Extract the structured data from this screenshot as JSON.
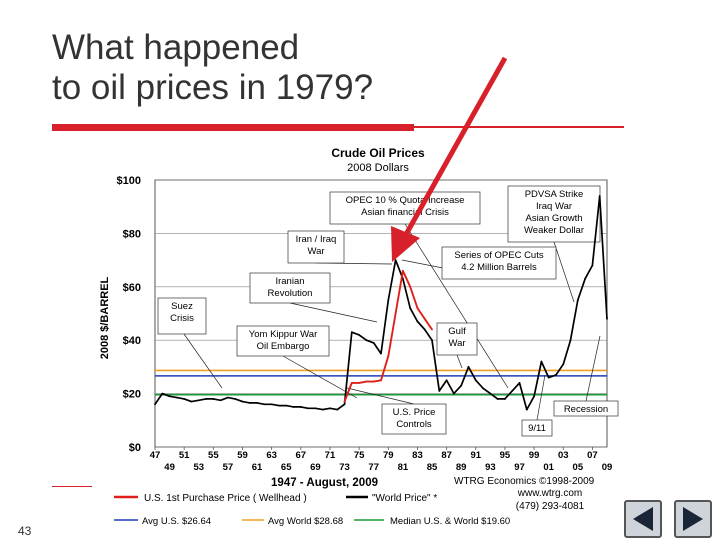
{
  "slide": {
    "title": "What happened\nto oil prices in 1979?",
    "page_number": "43"
  },
  "navigation": {
    "prev_icon": "triangle-left-icon",
    "next_icon": "triangle-right-icon"
  },
  "colors": {
    "accent_red": "#d8202a",
    "world_price": "#000000",
    "us_price": "#e0201b",
    "avg_us": "#1f3fb5",
    "avg_world": "#f0a020",
    "median": "#1a9a3a"
  },
  "chart_data": {
    "type": "line",
    "title": "Crude Oil Prices",
    "subtitle": "2008 Dollars",
    "ylabel": "2008 $/BARREL",
    "xlabel": "1947 - August, 2009",
    "ylim": [
      0,
      100
    ],
    "xlim": [
      1947,
      2009
    ],
    "yticks": [
      {
        "value": 0,
        "label": "$0"
      },
      {
        "value": 20,
        "label": "$20"
      },
      {
        "value": 40,
        "label": "$40"
      },
      {
        "value": 60,
        "label": "$60"
      },
      {
        "value": 80,
        "label": "$80"
      },
      {
        "value": 100,
        "label": "$100"
      }
    ],
    "xticks_top": [
      "47",
      "51",
      "55",
      "59",
      "63",
      "67",
      "71",
      "75",
      "79",
      "83",
      "87",
      "91",
      "95",
      "99",
      "03",
      "07"
    ],
    "xticks_bottom": [
      "49",
      "53",
      "57",
      "61",
      "65",
      "69",
      "73",
      "77",
      "81",
      "85",
      "89",
      "93",
      "97",
      "01",
      "05",
      "09"
    ],
    "series": [
      {
        "name": "\"World Price\" *",
        "color": "#000000",
        "points": [
          [
            1947,
            16
          ],
          [
            1948,
            20
          ],
          [
            1949,
            19
          ],
          [
            1950,
            18.5
          ],
          [
            1951,
            18
          ],
          [
            1952,
            17
          ],
          [
            1953,
            17.5
          ],
          [
            1954,
            18
          ],
          [
            1955,
            18
          ],
          [
            1956,
            17.5
          ],
          [
            1957,
            18.5
          ],
          [
            1958,
            18
          ],
          [
            1959,
            17
          ],
          [
            1960,
            16.5
          ],
          [
            1961,
            16.5
          ],
          [
            1962,
            16
          ],
          [
            1963,
            16
          ],
          [
            1964,
            15.5
          ],
          [
            1965,
            15.5
          ],
          [
            1966,
            15
          ],
          [
            1967,
            15
          ],
          [
            1968,
            14.5
          ],
          [
            1969,
            14.5
          ],
          [
            1970,
            14
          ],
          [
            1971,
            14.5
          ],
          [
            1972,
            14
          ],
          [
            1973,
            16
          ],
          [
            1974,
            43
          ],
          [
            1975,
            42
          ],
          [
            1976,
            40
          ],
          [
            1977,
            39
          ],
          [
            1978,
            35
          ],
          [
            1979,
            55
          ],
          [
            1980,
            70
          ],
          [
            1981,
            63
          ],
          [
            1982,
            52
          ],
          [
            1983,
            47
          ],
          [
            1984,
            44
          ],
          [
            1985,
            40
          ],
          [
            1986,
            21
          ],
          [
            1987,
            25
          ],
          [
            1988,
            20
          ],
          [
            1989,
            23
          ],
          [
            1990,
            30
          ],
          [
            1991,
            25
          ],
          [
            1992,
            22
          ],
          [
            1993,
            20
          ],
          [
            1994,
            18
          ],
          [
            1995,
            18
          ],
          [
            1996,
            21
          ],
          [
            1997,
            24
          ],
          [
            1998,
            14
          ],
          [
            1999,
            19
          ],
          [
            2000,
            32
          ],
          [
            2001,
            26
          ],
          [
            2002,
            27
          ],
          [
            2003,
            31
          ],
          [
            2004,
            40
          ],
          [
            2005,
            55
          ],
          [
            2006,
            63
          ],
          [
            2007,
            68
          ],
          [
            2008,
            94
          ],
          [
            2009,
            48
          ]
        ]
      },
      {
        "name": "U.S. 1st Purchase Price ( Wellhead )",
        "color": "#e0201b",
        "points": [
          [
            1973,
            17
          ],
          [
            1974,
            24
          ],
          [
            1975,
            24
          ],
          [
            1976,
            24.5
          ],
          [
            1977,
            24.5
          ],
          [
            1978,
            25
          ],
          [
            1979,
            34
          ],
          [
            1980,
            50
          ],
          [
            1981,
            66
          ],
          [
            1982,
            60
          ],
          [
            1983,
            52
          ],
          [
            1984,
            48
          ],
          [
            1985,
            44
          ]
        ]
      }
    ],
    "reference_lines": [
      {
        "name": "Avg U.S. $26.64",
        "value": 26.64,
        "color": "#1f3fb5"
      },
      {
        "name": "Avg World $28.68",
        "value": 28.68,
        "color": "#f0a020"
      },
      {
        "name": "Median U.S. & World $19.60",
        "value": 19.6,
        "color": "#1a9a3a"
      }
    ],
    "legend": {
      "placement": "bottom",
      "us_price_label": "U.S. 1st Purchase Price ( Wellhead )",
      "world_price_label": "\"World Price\" *",
      "avg_us_label": "Avg U.S. $26.64",
      "avg_world_label": "Avg World $28.68",
      "median_label": "Median U.S. & World $19.60"
    },
    "credits": {
      "line1": "WTRG Economics ©1998-2009",
      "line2": "www.wtrg.com",
      "line3": "(479) 293-4081"
    },
    "annotations": [
      {
        "id": "suez",
        "text": [
          "Suez",
          "Crisis"
        ]
      },
      {
        "id": "yom-kippur",
        "text": [
          "Yom Kippur War",
          "Oil Embargo"
        ]
      },
      {
        "id": "iran-iraq",
        "text": [
          "Iran / Iraq",
          "War"
        ]
      },
      {
        "id": "iranian",
        "text": [
          "Iranian",
          "Revolution"
        ]
      },
      {
        "id": "opec-quota",
        "text": [
          "OPEC 10 % Quota Increase",
          "Asian financial Crisis"
        ]
      },
      {
        "id": "pdvsa",
        "text": [
          "PDVSA Strike",
          "Iraq War",
          "Asian Growth",
          "Weaker Dollar"
        ]
      },
      {
        "id": "opec-cuts",
        "text": [
          "Series of OPEC Cuts",
          "4.2 Million Barrels"
        ]
      },
      {
        "id": "gulf",
        "text": [
          "Gulf",
          "War"
        ]
      },
      {
        "id": "price-controls",
        "text": [
          "U.S. Price",
          "Controls"
        ]
      },
      {
        "id": "nine-eleven",
        "text": [
          "9/11"
        ]
      },
      {
        "id": "recession",
        "text": [
          "Recession"
        ]
      }
    ]
  }
}
